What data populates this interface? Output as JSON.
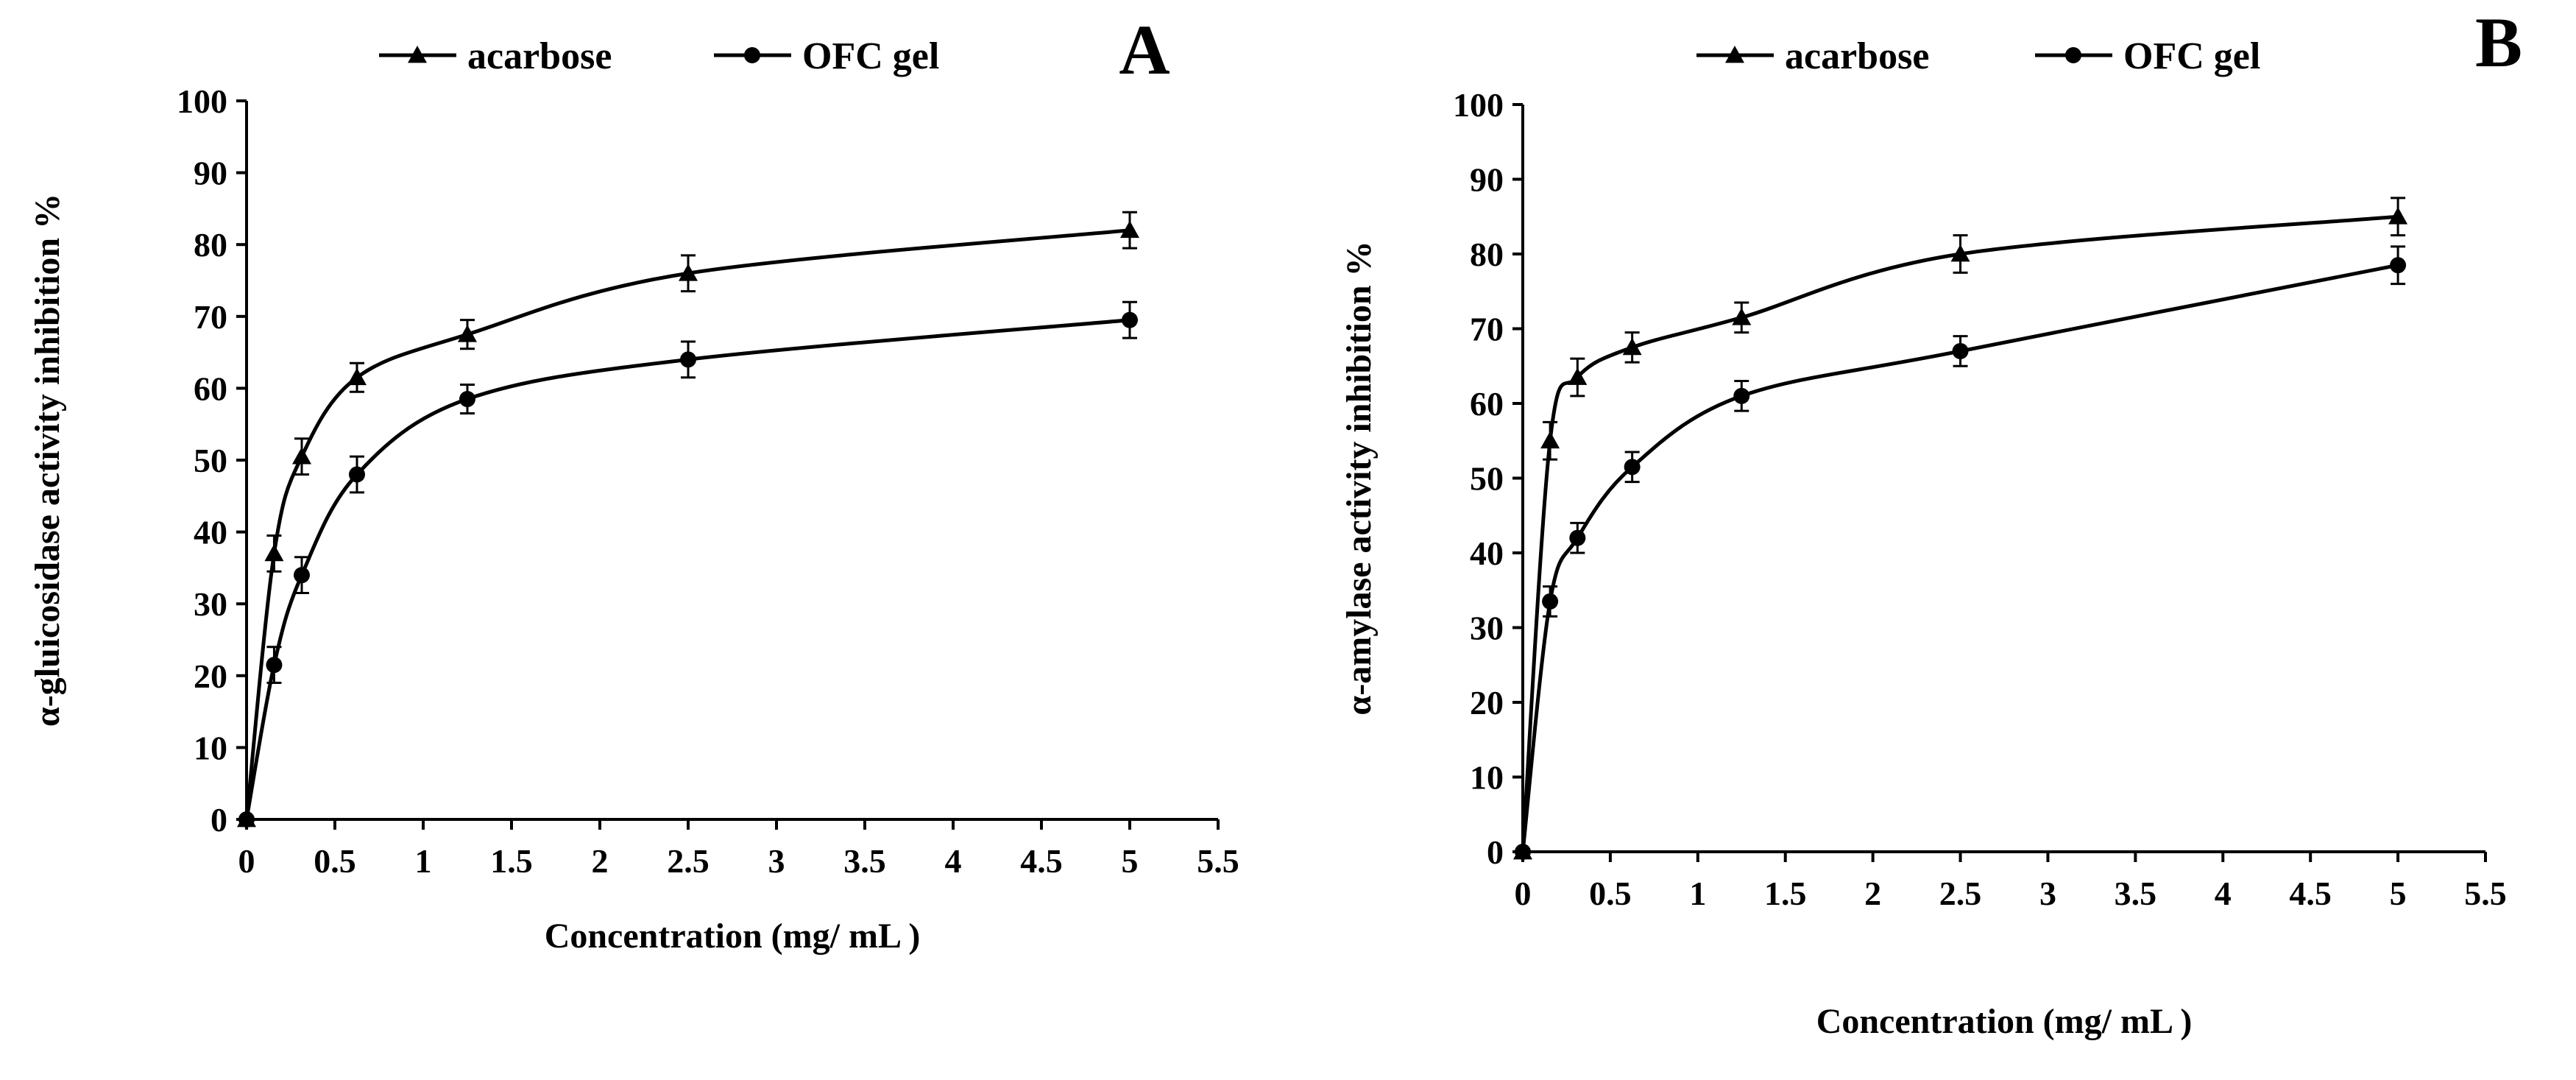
{
  "chart_data": [
    {
      "type": "line",
      "panel_label": "A",
      "title": "",
      "xlabel": "Concentration (mg/ mL )",
      "ylabel": "α-gluicosidase activity inhibition %",
      "xlim": [
        0,
        5.5
      ],
      "ylim": [
        0,
        100
      ],
      "x_ticks": [
        "0",
        "0.5",
        "1",
        "1.5",
        "2",
        "2.5",
        "3",
        "3.5",
        "4",
        "4.5",
        "5",
        "5.5"
      ],
      "y_ticks": [
        "0",
        "10",
        "20",
        "30",
        "40",
        "50",
        "60",
        "70",
        "80",
        "90",
        "100"
      ],
      "legend_position": "top-center",
      "series": [
        {
          "name": "acarbose",
          "marker": "triangle",
          "x": [
            0,
            0.156,
            0.3125,
            0.625,
            1.25,
            2.5,
            5
          ],
          "values": [
            0,
            37,
            50.5,
            61.5,
            67.5,
            76,
            82
          ],
          "errors": [
            0,
            2.5,
            2.5,
            2,
            2,
            2.5,
            2.5
          ]
        },
        {
          "name": "OFC gel",
          "marker": "circle",
          "x": [
            0,
            0.156,
            0.3125,
            0.625,
            1.25,
            2.5,
            5
          ],
          "values": [
            0,
            21.5,
            34,
            48,
            58.5,
            64,
            69.5
          ],
          "errors": [
            0,
            2.5,
            2.5,
            2.5,
            2,
            2.5,
            2.5
          ]
        }
      ]
    },
    {
      "type": "line",
      "panel_label": "B",
      "title": "",
      "xlabel": "Concentration (mg/ mL )",
      "ylabel": "α-amylase activity inhibition %",
      "xlim": [
        0,
        5.5
      ],
      "ylim": [
        0,
        100
      ],
      "x_ticks": [
        "0",
        "0.5",
        "1",
        "1.5",
        "2",
        "2.5",
        "3",
        "3.5",
        "4",
        "4.5",
        "5",
        "5.5"
      ],
      "y_ticks": [
        "0",
        "10",
        "20",
        "30",
        "40",
        "50",
        "60",
        "70",
        "80",
        "90",
        "100"
      ],
      "legend_position": "top-center",
      "series": [
        {
          "name": "acarbose",
          "marker": "triangle",
          "x": [
            0,
            0.156,
            0.3125,
            0.625,
            1.25,
            2.5,
            5
          ],
          "values": [
            0,
            55,
            63.5,
            67.5,
            71.5,
            80,
            85
          ],
          "errors": [
            0,
            2.5,
            2.5,
            2,
            2,
            2.5,
            2.5
          ]
        },
        {
          "name": "OFC gel",
          "marker": "circle",
          "x": [
            0,
            0.156,
            0.3125,
            0.625,
            1.25,
            2.5,
            5
          ],
          "values": [
            0,
            33.5,
            42,
            51.5,
            61,
            67,
            78.5
          ],
          "errors": [
            0,
            2,
            2,
            2,
            2,
            2,
            2.5
          ]
        }
      ]
    }
  ],
  "colors": {
    "line": "#000000",
    "background": "#ffffff"
  }
}
